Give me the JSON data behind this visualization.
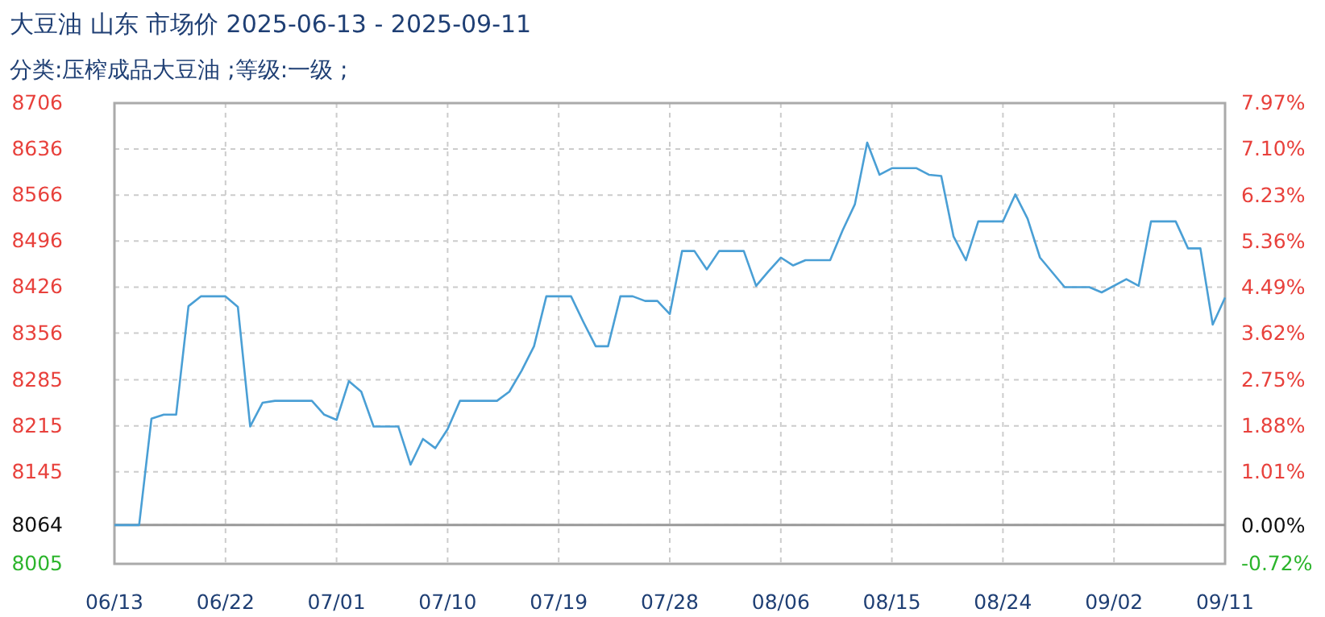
{
  "chart_data": {
    "type": "line",
    "title": "大豆油 山东 市场价 2025-06-13 - 2025-09-11",
    "subtitle": "分类:压榨成品大豆油 ;等级:一级 ;",
    "x": [
      "--06-13",
      "--06-15",
      "--06-16",
      "--06-17",
      "--06-18",
      "--06-19",
      "--06-20",
      "--06-22",
      "--06-23",
      "--06-24",
      "--06-25",
      "--06-26",
      "--06-29",
      "--06-30",
      "--07-01",
      "--07-02",
      "--07-03",
      "--07-04",
      "--07-06",
      "--07-07",
      "--07-08",
      "--07-09",
      "--07-10",
      "--07-11",
      "--07-14",
      "--07-15",
      "--07-16",
      "--07-17",
      "--07-18",
      "--07-20",
      "--07-21",
      "--07-22",
      "--07-23",
      "--07-24",
      "--07-25",
      "--07-26",
      "--07-27",
      "--07-28",
      "--07-29",
      "--07-30",
      "--07-31",
      "--08-01",
      "--08-03",
      "--08-04",
      "--08-05",
      "--08-06",
      "--08-07",
      "--08-08",
      "--08-10",
      "--08-11",
      "--08-12",
      "--08-13",
      "--08-14",
      "--08-15",
      "--08-17",
      "--08-18",
      "--08-19",
      "--08-20",
      "--08-21",
      "--08-22",
      "--08-24",
      "--08-25",
      "--08-26",
      "--08-27",
      "--08-29",
      "--08-31",
      "--09-01",
      "--09-03",
      "--09-04",
      "--09-05",
      "--09-07",
      "--09-08",
      "--09-09",
      "--09-10",
      "--09-11"
    ],
    "series": [
      {
        "color": "#4a9fd5",
        "values": [
          8064,
          8064,
          8226,
          8232,
          8232,
          8397,
          8412,
          8412,
          8396,
          8214,
          8250,
          8253,
          8253,
          8232,
          8224,
          8283,
          8267,
          8214,
          8214,
          8156,
          8195,
          8181,
          8210,
          8253,
          8253,
          8267,
          8299,
          8336,
          8412,
          8412,
          8373,
          8336,
          8336,
          8412,
          8412,
          8405,
          8405,
          8385,
          8481,
          8481,
          8453,
          8481,
          8481,
          8428,
          8450,
          8471,
          8459,
          8467,
          8467,
          8512,
          8552,
          8646,
          8597,
          8607,
          8607,
          8597,
          8595,
          8503,
          8467,
          8526,
          8526,
          8567,
          8530,
          8471,
          8426,
          8426,
          8418,
          8438,
          8428,
          8526,
          8526,
          8485,
          8485,
          8369,
          8410
        ]
      }
    ],
    "xlim": [
      "--06-13",
      "--09-11"
    ],
    "xticks": [
      {
        "value": "--06-13",
        "label": "06/13"
      },
      {
        "value": "--06-22",
        "label": "06/22"
      },
      {
        "value": "--07-01",
        "label": "07/01"
      },
      {
        "value": "--07-10",
        "label": "07/10"
      },
      {
        "value": "--07-19",
        "label": "07/19"
      },
      {
        "value": "--07-28",
        "label": "07/28"
      },
      {
        "value": "--08-06",
        "label": "08/06"
      },
      {
        "value": "--08-15",
        "label": "08/15"
      },
      {
        "value": "--08-24",
        "label": "08/24"
      },
      {
        "value": "--09-02",
        "label": "09/02"
      },
      {
        "value": "--09-11",
        "label": "09/11"
      }
    ],
    "ylim": [
      8005,
      8706
    ],
    "yticks": [
      8706,
      8636,
      8566,
      8496,
      8426,
      8356,
      8285,
      8215,
      8145,
      8064,
      8005
    ],
    "y2lim": [
      -0.72,
      7.97
    ],
    "y2ticks": [
      {
        "value": 7.97,
        "label": "7.97%"
      },
      {
        "value": 7.1,
        "label": "7.10%"
      },
      {
        "value": 6.23,
        "label": "6.23%"
      },
      {
        "value": 5.36,
        "label": "5.36%"
      },
      {
        "value": 4.49,
        "label": "4.49%"
      },
      {
        "value": 3.62,
        "label": "3.62%"
      },
      {
        "value": 2.75,
        "label": "2.75%"
      },
      {
        "value": 1.88,
        "label": "1.88%"
      },
      {
        "value": 1.01,
        "label": "1.01%"
      },
      {
        "value": 0,
        "label": "0.00%"
      },
      {
        "value": -0.72,
        "label": "-0.72%"
      }
    ],
    "ref_lines": [
      {
        "axis": "y",
        "value": 8064,
        "color": "#999999"
      }
    ],
    "grid": true
  }
}
